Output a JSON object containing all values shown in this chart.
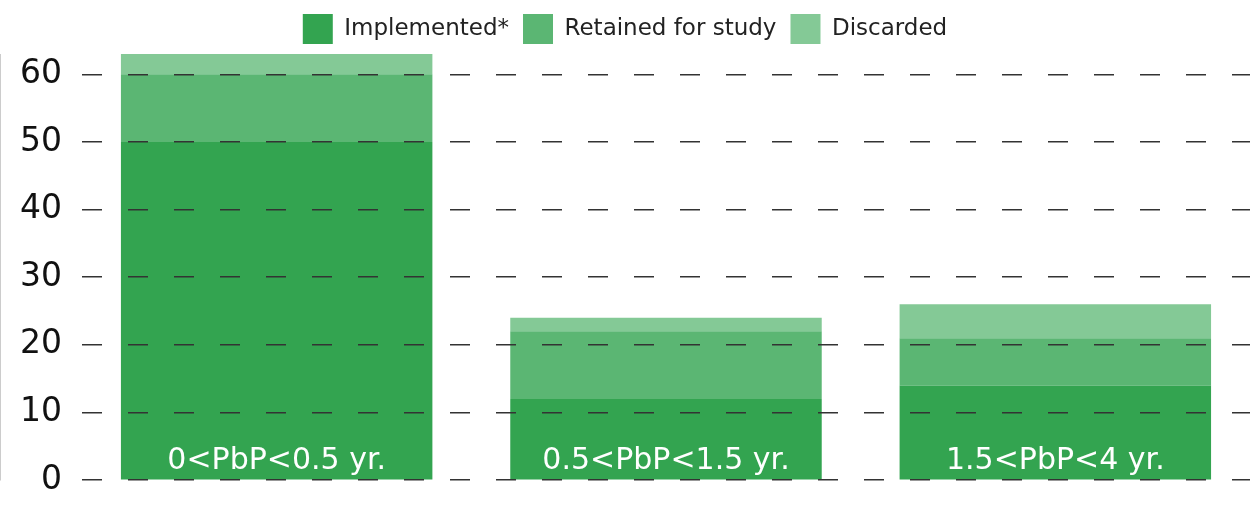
{
  "chart_data": {
    "type": "bar",
    "stacked": true,
    "categories": [
      "0<PbP<0.5 yr.",
      "0.5<PbP<1.5 yr.",
      "1.5<PbP<4 yr."
    ],
    "series": [
      {
        "name": "Implemented*",
        "color": "#33a450",
        "values": [
          50,
          12,
          14
        ]
      },
      {
        "name": "Retained for study",
        "color": "#5bb673",
        "values": [
          10,
          10,
          7
        ]
      },
      {
        "name": "Discarded",
        "color": "#84c996",
        "values": [
          3,
          2,
          5
        ]
      }
    ],
    "ylim": [
      0,
      63
    ],
    "yticks": [
      0,
      10,
      20,
      30,
      40,
      50,
      60
    ],
    "grid": "y",
    "legend": "top"
  }
}
